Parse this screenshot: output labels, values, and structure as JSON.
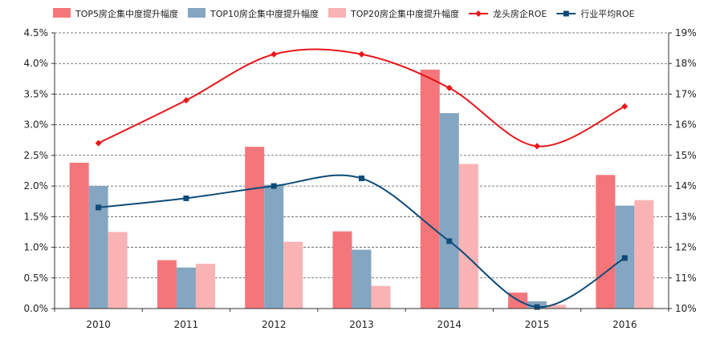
{
  "chart_data": {
    "type": "bar",
    "categories": [
      "2010",
      "2011",
      "2012",
      "2013",
      "2014",
      "2015",
      "2016"
    ],
    "series": [
      {
        "name": "TOP5房企集中度提升幅度",
        "kind": "bar",
        "axis": "left",
        "color": "#f4767a",
        "values": [
          2.38,
          0.79,
          2.64,
          1.26,
          3.9,
          0.26,
          2.18
        ]
      },
      {
        "name": "TOP10房企集中度提升幅度",
        "kind": "bar",
        "axis": "left",
        "color": "#85a6c0",
        "values": [
          2.0,
          0.67,
          2.02,
          0.96,
          3.19,
          0.12,
          1.68
        ]
      },
      {
        "name": "TOP20房企集中度提升幅度",
        "kind": "bar",
        "axis": "left",
        "color": "#f9b3b4",
        "values": [
          1.25,
          0.73,
          1.09,
          0.37,
          2.36,
          0.06,
          1.77
        ]
      },
      {
        "name": "龙头房企ROE",
        "kind": "line",
        "axis": "right",
        "color": "#e8161b",
        "marker": "diamond",
        "values": [
          15.4,
          16.8,
          18.3,
          18.3,
          17.2,
          15.3,
          16.6
        ]
      },
      {
        "name": "行业平均ROE",
        "kind": "line",
        "axis": "right",
        "color": "#0e4b78",
        "marker": "square",
        "values": [
          13.3,
          13.6,
          14.0,
          14.25,
          12.2,
          10.05,
          11.65
        ]
      }
    ],
    "y_left": {
      "min": 0,
      "max": 4.5,
      "step": 0.5,
      "tick_labels": [
        "0.0%",
        "0.5%",
        "1.0%",
        "1.5%",
        "2.0%",
        "2.5%",
        "3.0%",
        "3.5%",
        "4.0%",
        "4.5%"
      ]
    },
    "y_right": {
      "min": 10,
      "max": 19,
      "step": 1,
      "tick_labels": [
        "10%",
        "11%",
        "12%",
        "13%",
        "14%",
        "15%",
        "16%",
        "17%",
        "18%",
        "19%"
      ]
    },
    "grid": true,
    "legend_position": "top"
  }
}
